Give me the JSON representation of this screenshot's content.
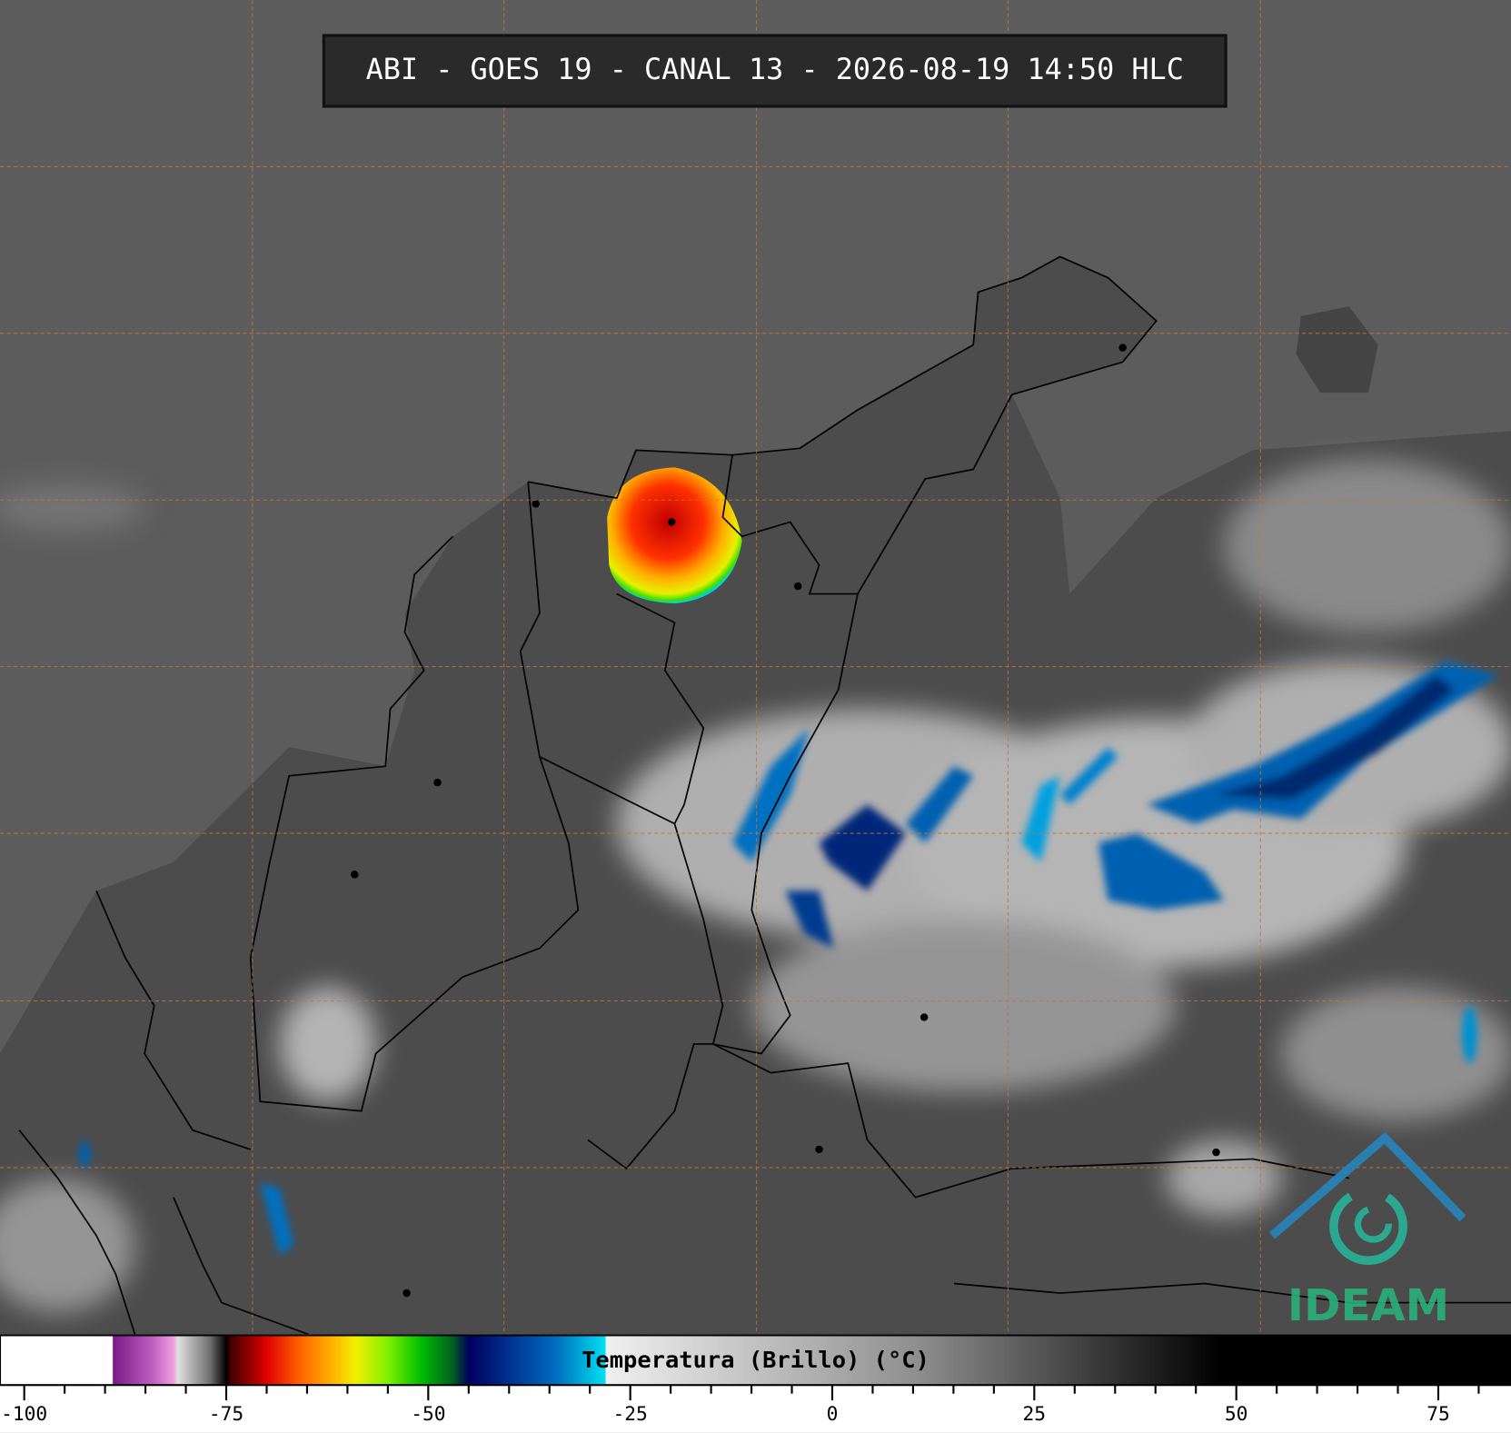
{
  "header": {
    "title": "ABI - GOES 19 - CANAL 13 - 2026-08-19 14:50 HLC"
  },
  "colorbar": {
    "label": "Temperatura (Brillo) (°C)",
    "xlim": [
      -103,
      84
    ],
    "ticks": [
      -100,
      -75,
      -50,
      -25,
      0,
      25,
      50,
      75
    ],
    "minor_ticks": [
      -95,
      -90,
      -85,
      -80,
      -70,
      -65,
      -60,
      -55,
      -45,
      -40,
      -35,
      -30,
      -20,
      -15,
      -10,
      -5,
      5,
      10,
      15,
      20,
      30,
      35,
      40,
      45,
      55,
      60,
      65,
      70,
      80
    ],
    "stops": [
      {
        "value": -103,
        "color": "#ffffff"
      },
      {
        "value": -89.1,
        "color": "#ffffff"
      },
      {
        "value": -89,
        "color": "#7a1a8a"
      },
      {
        "value": -84,
        "color": "#c060c0"
      },
      {
        "value": -81.5,
        "color": "#f0a0e0"
      },
      {
        "value": -81,
        "color": "#e0e0e0"
      },
      {
        "value": -77,
        "color": "#707070"
      },
      {
        "value": -75,
        "color": "#000000"
      },
      {
        "value": -74.5,
        "color": "#400000"
      },
      {
        "value": -70,
        "color": "#e00000"
      },
      {
        "value": -66,
        "color": "#ff6000"
      },
      {
        "value": -62,
        "color": "#ffb000"
      },
      {
        "value": -59,
        "color": "#f0f000"
      },
      {
        "value": -55,
        "color": "#80f000"
      },
      {
        "value": -51,
        "color": "#00c000"
      },
      {
        "value": -47,
        "color": "#006020"
      },
      {
        "value": -45,
        "color": "#000060"
      },
      {
        "value": -40,
        "color": "#003090"
      },
      {
        "value": -34,
        "color": "#0070c0"
      },
      {
        "value": -28.1,
        "color": "#00e0f0"
      },
      {
        "value": -28,
        "color": "#f0f0f0"
      },
      {
        "value": 10,
        "color": "#909090"
      },
      {
        "value": 48,
        "color": "#000000"
      },
      {
        "value": 84,
        "color": "#000000"
      }
    ]
  },
  "logo": {
    "text": "IDEAM"
  }
}
